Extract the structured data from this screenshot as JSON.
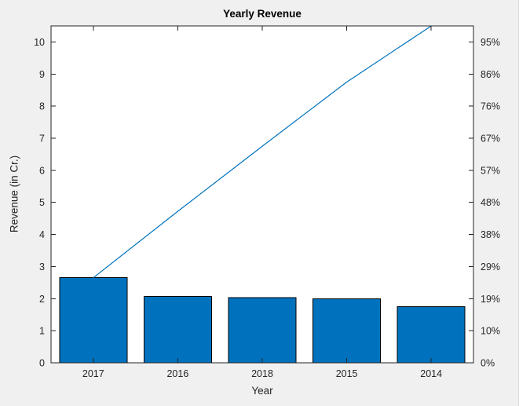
{
  "figure": {
    "background": "#F0F0F0"
  },
  "chart_data": {
    "type": "pareto",
    "title": "Yearly Revenue",
    "xlabel": "Year",
    "ylabel": "Revenue (in Cr.)",
    "categories": [
      "2017",
      "2016",
      "2018",
      "2015",
      "2014"
    ],
    "series": [
      {
        "name": "revenue-bars",
        "type": "bar",
        "values": [
          2.65,
          2.07,
          2.03,
          2.0,
          1.75
        ]
      },
      {
        "name": "cumulative-line",
        "type": "line",
        "values": [
          2.65,
          4.72,
          6.75,
          8.75,
          10.5
        ]
      }
    ],
    "total": 10.5,
    "left_axis": {
      "min": 0,
      "max": 10.5,
      "ticks": [
        0,
        1,
        2,
        3,
        4,
        5,
        6,
        7,
        8,
        9,
        10
      ]
    },
    "right_axis": {
      "tick_values": [
        0,
        1,
        2,
        3,
        4,
        5,
        6,
        7,
        8,
        9,
        10
      ],
      "tick_labels": [
        "0%",
        "10%",
        "19%",
        "29%",
        "38%",
        "48%",
        "57%",
        "67%",
        "76%",
        "86%",
        "95%"
      ]
    },
    "bar_width_fraction": 0.8,
    "grid": false,
    "colors": {
      "bar_fill": "#0072BD",
      "bar_edge": "#000000",
      "line": "#0072BD",
      "axis": "#262626",
      "tick_text": "#262626",
      "title_text": "#000000",
      "label_text": "#262626",
      "plot_bg": "#FFFFFF",
      "figure_bg": "#F0F0F0"
    }
  }
}
